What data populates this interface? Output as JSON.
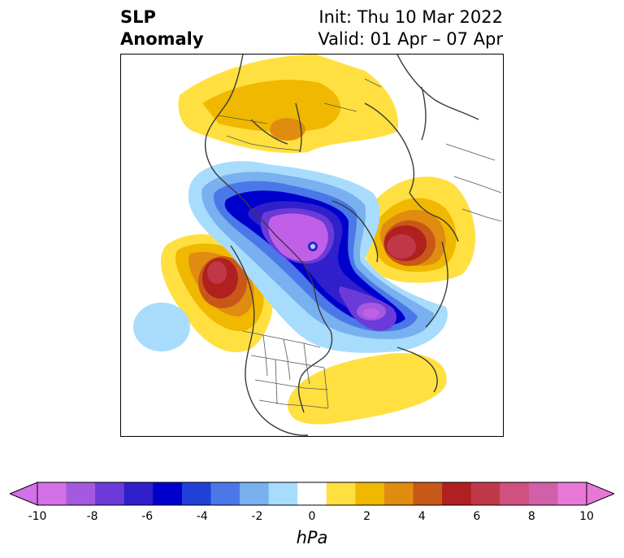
{
  "title": {
    "left_line1": "SLP",
    "left_line2": "Anomaly",
    "right_line1": "Init: Thu 10 Mar 2022",
    "right_line2": "Valid: 01 Apr – 07 Apr"
  },
  "colorbar": {
    "label": "hPa",
    "levels": [
      -10,
      -9,
      -8,
      -7,
      -6,
      -5,
      -4,
      -3,
      -2,
      -1,
      1,
      2,
      3,
      4,
      5,
      6,
      7,
      8,
      9,
      10
    ],
    "tick_labels": [
      "-10",
      "-8",
      "-6",
      "-4",
      "-2",
      "0",
      "2",
      "4",
      "6",
      "8",
      "10"
    ],
    "extend": "both",
    "colors": [
      "#d470e8",
      "#a35ae0",
      "#6b3ad8",
      "#3020cc",
      "#0000cc",
      "#2040d8",
      "#4a78e8",
      "#78b0f0",
      "#a8dcfc",
      "#ffffff",
      "#ffe040",
      "#f0b800",
      "#e08c10",
      "#c85818",
      "#b02020",
      "#c03848",
      "#d05080",
      "#d060a8",
      "#e878d8"
    ],
    "low_extend_color": "#d470e8",
    "high_extend_color": "#e878d8"
  },
  "map": {
    "projection": "polar stereographic, North America / Arctic",
    "features": [
      "coastlines",
      "country borders",
      "US state borders",
      "Canadian province borders"
    ],
    "colors": {
      "neg_strong": "#c060e8",
      "neg_mid": "#0000cc",
      "neg_weak": "#a8dcfc",
      "pos_weak": "#ffe040",
      "pos_mid": "#e08c10",
      "pos_strong": "#b02020"
    }
  }
}
